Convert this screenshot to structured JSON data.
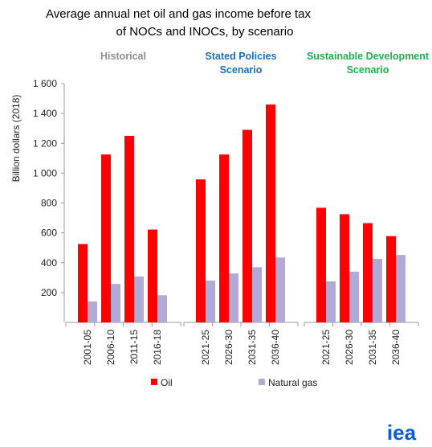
{
  "chart_data": {
    "type": "bar",
    "title_line1": "Average annual net oil and gas income before tax",
    "title_line2": "of NOCs and INOCs, by scenario",
    "ylabel": "Billion dollars (2018)",
    "ylim": [
      0,
      1600
    ],
    "yticks": [
      200,
      400,
      600,
      800,
      1000,
      1200,
      1400,
      1600
    ],
    "ytick_labels": [
      "200",
      "400",
      "600",
      "800",
      "1 000",
      "1 200",
      "1 400",
      "1 600"
    ],
    "groups": [
      {
        "label_lines": [
          "Historical"
        ],
        "label_color": "#8c8c8c",
        "categories": [
          "2001-05",
          "2006-10",
          "2011-15",
          "2016-18"
        ]
      },
      {
        "label_lines": [
          "Stated Policies",
          "Scenario"
        ],
        "label_color": "#1a6fc6",
        "categories": [
          "2021-25",
          "2026-30",
          "2031-35",
          "2036-40"
        ]
      },
      {
        "label_lines": [
          "Sustainable Development",
          "Scenario"
        ],
        "label_color": "#1fb04b",
        "categories": [
          "2021-25",
          "2026-30",
          "2031-35",
          "2036-40"
        ]
      }
    ],
    "series": [
      {
        "name": "Oil",
        "color": "#ff0000",
        "values": [
          [
            525,
            1125,
            1250,
            622
          ],
          [
            958,
            1125,
            1290,
            1460
          ],
          [
            768,
            725,
            665,
            578
          ]
        ]
      },
      {
        "name": "Natural gas",
        "color": "#b3a9d6",
        "values": [
          [
            140,
            258,
            308,
            182
          ],
          [
            280,
            328,
            370,
            435
          ],
          [
            275,
            340,
            425,
            452
          ]
        ]
      }
    ],
    "legend_position": "bottom",
    "grid": false
  },
  "logo": {
    "text": "iea",
    "color": "#0b5fd6"
  }
}
